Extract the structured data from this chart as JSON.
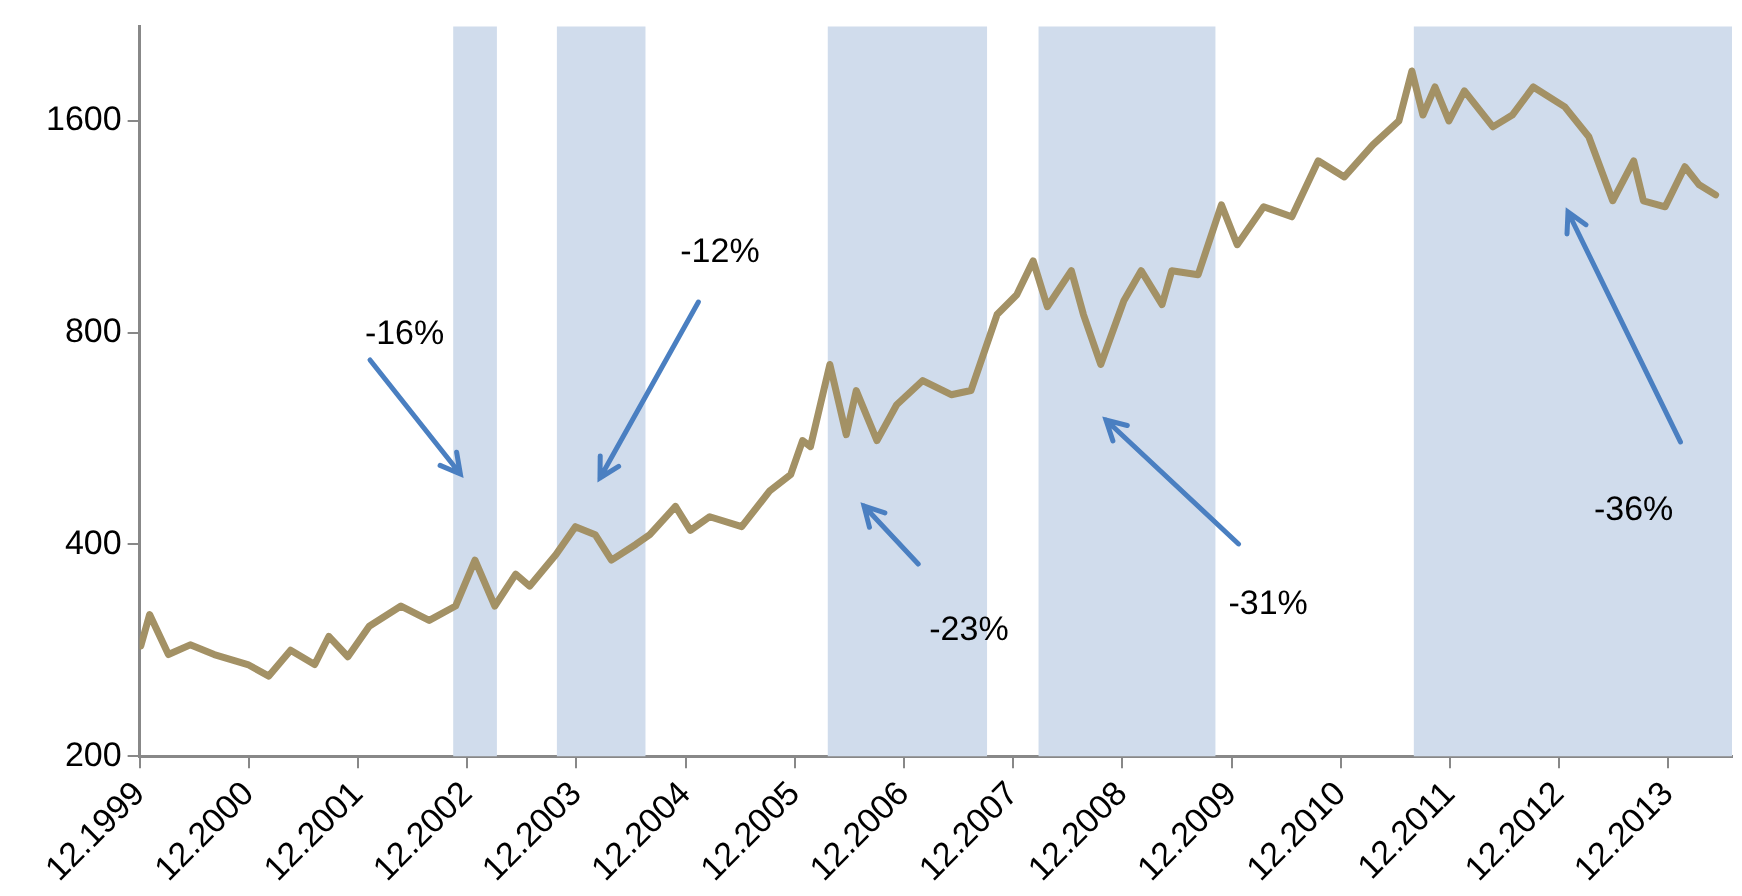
{
  "chart_data": {
    "type": "line",
    "log": "y",
    "xlim": [
      "1999-12",
      "2014-07"
    ],
    "xticks": [
      {
        "value": "1999-12",
        "label": "12.1999"
      },
      {
        "value": "2000-12",
        "label": "12.2000"
      },
      {
        "value": "2001-12",
        "label": "12.2001"
      },
      {
        "value": "2002-12",
        "label": "12.2002"
      },
      {
        "value": "2003-12",
        "label": "12.2003"
      },
      {
        "value": "2004-12",
        "label": "12.2004"
      },
      {
        "value": "2005-12",
        "label": "12.2005"
      },
      {
        "value": "2006-12",
        "label": "12.2006"
      },
      {
        "value": "2007-12",
        "label": "12.2007"
      },
      {
        "value": "2008-12",
        "label": "12.2008"
      },
      {
        "value": "2009-12",
        "label": "12.2009"
      },
      {
        "value": "2010-12",
        "label": "12.2010"
      },
      {
        "value": "2011-12",
        "label": "12.2011"
      },
      {
        "value": "2012-12",
        "label": "12.2012"
      },
      {
        "value": "2013-12",
        "label": "12.2013"
      }
    ],
    "ylim": [
      200,
      2180
    ],
    "yticks": [
      200,
      400,
      800,
      1600
    ],
    "series": [
      {
        "color": "#a39165",
        "x": [
          "1999-12-05",
          "2000-01-04",
          "2000-03-06",
          "2000-05-18",
          "2000-08-07",
          "2000-11-28",
          "2001-02-07",
          "2001-04-19",
          "2001-07-08",
          "2001-08-25",
          "2001-10-28",
          "2002-01-08",
          "2002-04-23",
          "2002-07-26",
          "2002-10-23",
          "2002-12-27",
          "2003-03-02",
          "2003-05-11",
          "2003-06-27",
          "2003-09-24",
          "2003-11-28",
          "2004-02-03",
          "2004-03-27",
          "2004-06-17",
          "2004-08-03",
          "2004-10-28",
          "2004-12-17",
          "2005-02-21",
          "2005-06-06",
          "2005-09-09",
          "2005-11-18",
          "2005-12-27",
          "2006-01-23",
          "2006-03-27",
          "2006-05-21",
          "2006-06-24",
          "2006-09-02",
          "2006-11-07",
          "2007-02-03",
          "2007-05-07",
          "2007-07-12",
          "2007-10-08",
          "2007-12-13",
          "2008-02-07",
          "2008-03-24",
          "2008-06-13",
          "2008-07-23",
          "2008-09-20",
          "2008-12-06",
          "2009-02-03",
          "2009-04-12",
          "2009-05-14",
          "2009-08-11",
          "2009-10-28",
          "2009-12-20",
          "2010-03-17",
          "2010-06-20",
          "2010-09-17",
          "2010-12-13",
          "2011-03-17",
          "2011-06-13",
          "2011-07-26",
          "2011-09-02",
          "2011-10-12",
          "2011-11-28",
          "2012-01-19",
          "2012-04-23",
          "2012-06-27",
          "2012-09-06",
          "2012-12-20",
          "2013-03-09",
          "2013-05-28",
          "2013-08-07",
          "2013-09-09",
          "2013-11-21",
          "2014-01-26",
          "2014-03-13",
          "2014-05-07"
        ],
        "values": [
          287,
          318,
          279,
          288,
          279,
          270,
          260,
          283,
          270,
          296,
          277,
          306,
          327,
          312,
          327,
          380,
          327,
          363,
          349,
          387,
          424,
          413,
          380,
          400,
          413,
          453,
          419,
          438,
          424,
          477,
          503,
          562,
          551,
          721,
          573,
          662,
          562,
          632,
          684,
          653,
          662,
          849,
          906,
          1012,
          871,
          980,
          849,
          721,
          888,
          980,
          877,
          980,
          967,
          1216,
          1067,
          1208,
          1169,
          1404,
          1332,
          1479,
          1600,
          1884,
          1631,
          1788,
          1600,
          1765,
          1569,
          1631,
          1788,
          1675,
          1519,
          1232,
          1404,
          1232,
          1208,
          1377,
          1298,
          1256
        ]
      }
    ],
    "bands": [
      {
        "axis": "x",
        "from": "2002-10-15",
        "to": "2003-03-09",
        "color": "#d0dcec"
      },
      {
        "axis": "x",
        "from": "2003-09-27",
        "to": "2004-07-19",
        "color": "#d0dcec"
      },
      {
        "axis": "x",
        "from": "2006-03-20",
        "to": "2007-09-05",
        "color": "#d0dcec"
      },
      {
        "axis": "x",
        "from": "2008-02-25",
        "to": "2009-10-08",
        "color": "#d0dcec"
      },
      {
        "axis": "x",
        "from": "2011-08-02",
        "to": "2014-07",
        "color": "#d0dcec"
      }
    ],
    "annotations": [
      {
        "text": "-16%",
        "x": "2002-11-10",
        "y": 503
      },
      "-12%",
      "-23%",
      "-31%",
      "-36%"
    ]
  }
}
